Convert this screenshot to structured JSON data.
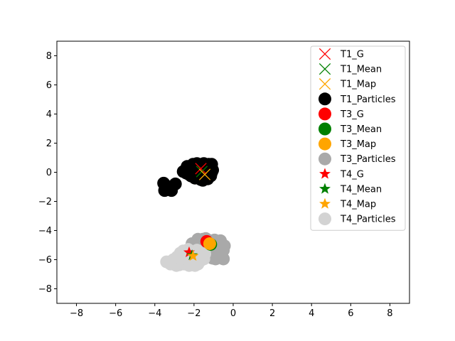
{
  "chart_data": {
    "type": "scatter",
    "title": "",
    "xlabel": "",
    "ylabel": "",
    "xlim": [
      -9,
      9
    ],
    "ylim": [
      -9,
      9
    ],
    "x_ticks": [
      -8,
      -6,
      -4,
      -2,
      0,
      2,
      4,
      6,
      8
    ],
    "y_ticks": [
      -8,
      -6,
      -4,
      -2,
      0,
      2,
      4,
      6,
      8
    ],
    "grid": false,
    "legend_position": "top-right",
    "series": [
      {
        "name": "T1_G",
        "marker": "x",
        "color": "#ff0000",
        "points": [
          [
            -1.65,
            0.25
          ]
        ]
      },
      {
        "name": "T1_Mean",
        "marker": "x",
        "color": "#008000",
        "points": [
          [
            -1.6,
            0.05
          ]
        ]
      },
      {
        "name": "T1_Map",
        "marker": "x",
        "color": "#ffa500",
        "points": [
          [
            -1.45,
            -0.15
          ]
        ]
      },
      {
        "name": "T1_Particles",
        "marker": "circle",
        "color": "#000000",
        "points": [
          [
            -2.4,
            -0.05
          ],
          [
            -2.3,
            0.15
          ],
          [
            -2.2,
            0.35
          ],
          [
            -2.15,
            -0.25
          ],
          [
            -2.05,
            0.55
          ],
          [
            -2.0,
            0.0
          ],
          [
            -1.95,
            -0.4
          ],
          [
            -1.9,
            0.25
          ],
          [
            -1.85,
            0.6
          ],
          [
            -1.8,
            -0.2
          ],
          [
            -1.75,
            0.1
          ],
          [
            -1.7,
            0.45
          ],
          [
            -1.65,
            -0.5
          ],
          [
            -1.6,
            -0.05
          ],
          [
            -1.55,
            0.3
          ],
          [
            -1.5,
            0.6
          ],
          [
            -1.45,
            -0.35
          ],
          [
            -1.4,
            0.15
          ],
          [
            -1.35,
            0.45
          ],
          [
            -1.3,
            -0.15
          ],
          [
            -1.25,
            0.05
          ],
          [
            -1.2,
            0.35
          ],
          [
            -1.15,
            -0.25
          ],
          [
            -1.1,
            0.55
          ],
          [
            -1.15,
            0.2
          ],
          [
            -1.2,
            -0.05
          ],
          [
            -2.1,
            0.25
          ],
          [
            -1.95,
            0.45
          ],
          [
            -1.7,
            -0.3
          ],
          [
            -1.45,
            0.3
          ],
          [
            -1.3,
            -0.45
          ],
          [
            -2.25,
            -0.15
          ],
          [
            -1.1,
            0.0
          ],
          [
            -1.05,
            0.15
          ],
          [
            -1.85,
            -0.05
          ],
          [
            -1.6,
            0.55
          ],
          [
            -3.55,
            -0.75
          ],
          [
            -3.4,
            -1.2
          ],
          [
            -3.25,
            -1.0
          ],
          [
            -3.15,
            -1.25
          ],
          [
            -2.95,
            -0.8
          ],
          [
            -3.5,
            -1.25
          ],
          [
            -2.55,
            0.05
          ],
          [
            -2.35,
            0.4
          ],
          [
            -1.55,
            -0.55
          ],
          [
            -1.25,
            0.55
          ]
        ]
      },
      {
        "name": "T3_G",
        "marker": "circle",
        "color": "#ff0000",
        "points": [
          [
            -1.35,
            -4.75
          ]
        ]
      },
      {
        "name": "T3_Mean",
        "marker": "circle",
        "color": "#008000",
        "points": [
          [
            -1.15,
            -4.95
          ]
        ]
      },
      {
        "name": "T3_Map",
        "marker": "circle",
        "color": "#ffa500",
        "points": [
          [
            -1.2,
            -4.9
          ]
        ]
      },
      {
        "name": "T3_Particles",
        "marker": "circle",
        "color": "#a9a9a9",
        "points": [
          [
            -2.1,
            -4.9
          ],
          [
            -2.0,
            -5.3
          ],
          [
            -1.9,
            -5.0
          ],
          [
            -1.8,
            -4.6
          ],
          [
            -1.75,
            -5.5
          ],
          [
            -1.7,
            -5.2
          ],
          [
            -1.6,
            -4.8
          ],
          [
            -1.5,
            -5.4
          ],
          [
            -1.45,
            -5.0
          ],
          [
            -1.4,
            -4.55
          ],
          [
            -1.3,
            -5.6
          ],
          [
            -1.25,
            -5.2
          ],
          [
            -1.15,
            -4.7
          ],
          [
            -1.1,
            -5.4
          ],
          [
            -1.0,
            -5.0
          ],
          [
            -0.95,
            -4.65
          ],
          [
            -0.9,
            -5.3
          ],
          [
            -0.85,
            -5.6
          ],
          [
            -0.8,
            -4.8
          ],
          [
            -0.75,
            -5.1
          ],
          [
            -0.7,
            -5.5
          ],
          [
            -0.65,
            -4.7
          ],
          [
            -0.6,
            -5.2
          ],
          [
            -0.55,
            -4.95
          ],
          [
            -0.5,
            -5.35
          ],
          [
            -0.45,
            -5.05
          ],
          [
            -1.05,
            -5.9
          ],
          [
            -0.5,
            -5.95
          ],
          [
            -1.65,
            -5.7
          ],
          [
            -1.2,
            -5.8
          ],
          [
            -1.55,
            -4.6
          ],
          [
            -0.9,
            -5.95
          ],
          [
            -0.6,
            -5.7
          ],
          [
            -1.8,
            -5.25
          ],
          [
            -1.35,
            -5.45
          ]
        ]
      },
      {
        "name": "T4_G",
        "marker": "star",
        "color": "#ff0000",
        "points": [
          [
            -2.25,
            -5.5
          ]
        ]
      },
      {
        "name": "T4_Mean",
        "marker": "star",
        "color": "#008000",
        "points": [
          [
            -2.1,
            -5.7
          ]
        ]
      },
      {
        "name": "T4_Map",
        "marker": "star",
        "color": "#ffa500",
        "points": [
          [
            -2.05,
            -5.75
          ]
        ]
      },
      {
        "name": "T4_Particles",
        "marker": "circle",
        "color": "#d3d3d3",
        "points": [
          [
            -3.4,
            -6.15
          ],
          [
            -3.2,
            -6.3
          ],
          [
            -3.05,
            -6.0
          ],
          [
            -2.95,
            -6.2
          ],
          [
            -2.85,
            -5.8
          ],
          [
            -2.75,
            -6.35
          ],
          [
            -2.7,
            -5.55
          ],
          [
            -2.6,
            -6.05
          ],
          [
            -2.55,
            -5.4
          ],
          [
            -2.5,
            -6.3
          ],
          [
            -2.4,
            -5.75
          ],
          [
            -2.35,
            -6.1
          ],
          [
            -2.3,
            -5.3
          ],
          [
            -2.25,
            -6.4
          ],
          [
            -2.15,
            -5.9
          ],
          [
            -2.1,
            -6.15
          ],
          [
            -2.05,
            -5.45
          ],
          [
            -2.0,
            -6.35
          ],
          [
            -1.95,
            -5.7
          ],
          [
            -1.9,
            -6.05
          ],
          [
            -1.85,
            -5.35
          ],
          [
            -1.8,
            -6.3
          ],
          [
            -1.75,
            -5.85
          ],
          [
            -1.7,
            -6.1
          ],
          [
            -1.65,
            -5.55
          ],
          [
            -1.6,
            -6.0
          ],
          [
            -1.55,
            -5.75
          ],
          [
            -1.5,
            -5.95
          ],
          [
            -1.45,
            -5.6
          ],
          [
            -2.9,
            -6.4
          ],
          [
            -2.45,
            -5.6
          ],
          [
            -2.2,
            -5.65
          ],
          [
            -3.1,
            -6.1
          ],
          [
            -1.95,
            -6.4
          ],
          [
            -2.65,
            -5.95
          ]
        ]
      }
    ]
  }
}
